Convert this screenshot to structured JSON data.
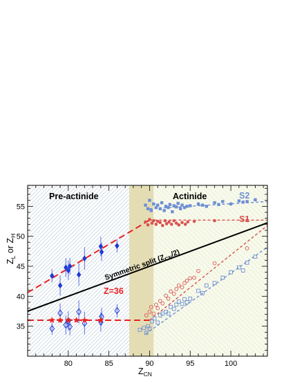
{
  "chart_data": {
    "type": "scatter",
    "xlabel": "Z",
    "xlabel_sub": "CN",
    "ylabel_parts": [
      "Z",
      "L",
      " or Z",
      "H"
    ],
    "xlim": [
      75,
      104.5
    ],
    "ylim": [
      30,
      58.5
    ],
    "x_ticks": [
      80,
      85,
      90,
      95,
      100
    ],
    "y_ticks": [
      35,
      40,
      45,
      50,
      55
    ],
    "regions": [
      {
        "label": "Pre-actinide",
        "x_range": [
          75,
          87.5
        ]
      },
      {
        "label": "",
        "x_range": [
          87.5,
          90.5
        ]
      },
      {
        "label": "Actinide",
        "x_range": [
          90.5,
          104.5
        ]
      }
    ],
    "colors": {
      "preactinide_points": "#1f3ad6",
      "preactinide_line": "#e8201f",
      "s1": "#d9534f",
      "s2": "#6f8fd4",
      "symmetric": "#000000",
      "band": "#e4ddb4",
      "hatch": "#8aa9bb",
      "actinide_bg": "#f8faeb"
    },
    "annotations": {
      "symmetric": {
        "text": "Symmetric split (Z",
        "sub": "CN",
        "tail": "/2)"
      },
      "z36": "Z=36",
      "s1": "S1",
      "s2": "S2"
    },
    "series": [
      {
        "name": "",
        "role": "heavy-preactinide",
        "marker": "filled-diamond",
        "color": "#1f3ad6",
        "x": [
          78,
          79,
          79.7,
          80,
          80.2,
          81.3,
          82,
          84,
          84.1,
          86
        ],
        "y": [
          43.4,
          41.8,
          44.8,
          44.3,
          45.0,
          43.6,
          46.3,
          48.3,
          47.4,
          48.4
        ],
        "err": [
          1.1,
          1.7,
          1.6,
          1.6,
          1.4,
          1.9,
          1.9,
          1.6,
          1.5,
          1.1
        ]
      },
      {
        "name": "",
        "role": "light-preactinide",
        "marker": "open-diamond",
        "color": "#1f3ad6",
        "x": [
          78,
          79,
          79.7,
          80,
          80.2,
          81.3,
          82,
          84,
          84.1,
          86
        ],
        "y": [
          34.6,
          37.2,
          35.2,
          35.9,
          34.9,
          37.4,
          35.5,
          35.7,
          36.6,
          37.6
        ],
        "err": [
          1.0,
          1.6,
          1.6,
          1.6,
          1.4,
          1.9,
          1.9,
          1.6,
          1.5,
          1.1
        ]
      },
      {
        "name": "",
        "role": "z36-points",
        "marker": "filled-star",
        "color": "#e8201f",
        "x": [
          78,
          79,
          80,
          81,
          82,
          84
        ],
        "y": [
          36,
          36,
          36,
          36,
          36,
          36
        ]
      },
      {
        "name": "S2",
        "role": "s2-heavy",
        "marker": "filled-square",
        "color": "#6f8fd4",
        "x": [
          89.5,
          89.8,
          90.0,
          90.2,
          90.5,
          90.8,
          91.0,
          91.3,
          91.5,
          91.8,
          92.0,
          92.3,
          92.5,
          92.8,
          93.0,
          93.3,
          93.5,
          93.8,
          94.0,
          94.3,
          94.6,
          95.0,
          96.0,
          96.5,
          97.0,
          98.0,
          98.5,
          99.0,
          100.0,
          101.0,
          101.5,
          102.0,
          103.0
        ],
        "y": [
          55.2,
          54.6,
          56.0,
          54.3,
          55.4,
          54.8,
          55.2,
          54.6,
          55.6,
          54.3,
          55.0,
          54.8,
          55.3,
          54.1,
          55.1,
          54.9,
          55.5,
          54.6,
          55.2,
          54.8,
          55.0,
          55.1,
          55.4,
          55.2,
          55.0,
          55.6,
          55.3,
          55.8,
          55.4,
          55.9,
          55.7,
          55.8,
          56.1
        ]
      },
      {
        "name": "S1",
        "role": "s1-heavy",
        "marker": "filled-circle",
        "color": "#d9534f",
        "x": [
          89.5,
          89.8,
          90.0,
          90.3,
          90.5,
          90.8,
          91.0,
          91.3,
          91.6,
          91.9,
          92.1,
          92.4,
          92.7,
          93.0,
          93.3,
          93.6,
          94.0,
          94.4,
          94.7,
          95.5,
          98.0,
          102.0
        ],
        "y": [
          52.4,
          51.9,
          52.8,
          52.2,
          52.6,
          52.0,
          52.5,
          52.3,
          51.8,
          52.6,
          52.1,
          52.4,
          52.0,
          52.6,
          52.2,
          51.9,
          52.3,
          52.0,
          52.4,
          52.5,
          52.6,
          52.7
        ]
      },
      {
        "name": "",
        "role": "s1-light",
        "marker": "open-circle",
        "color": "#d9534f",
        "x": [
          89.6,
          90.0,
          90.2,
          90.5,
          90.8,
          91.0,
          91.3,
          91.6,
          92.0,
          92.3,
          92.6,
          93.0,
          93.3,
          93.6,
          94.0,
          94.3,
          94.6,
          95.0,
          95.5,
          96.0,
          98.0,
          102.0
        ],
        "y": [
          36.8,
          37.4,
          38.2,
          37.1,
          38.6,
          38.0,
          39.2,
          38.8,
          40.1,
          39.6,
          40.8,
          40.4,
          41.2,
          41.8,
          41.5,
          42.2,
          42.6,
          43.0,
          43.1,
          44.2,
          45.5,
          48.0
        ]
      },
      {
        "name": "",
        "role": "s2-light",
        "marker": "open-square",
        "color": "#6f8fd4",
        "x": [
          88.8,
          89.3,
          89.6,
          89.8,
          90.0,
          90.3,
          90.6,
          91.0,
          91.3,
          91.6,
          92.0,
          92.3,
          92.6,
          93.0,
          93.3,
          93.6,
          94.0,
          94.3,
          94.6,
          95.0,
          96.0,
          96.5,
          97.0,
          98.0,
          99.0,
          100.0,
          101.0,
          101.5,
          102.0,
          103.0
        ],
        "y": [
          34.4,
          34.7,
          33.9,
          35.0,
          34.6,
          35.8,
          36.3,
          35.6,
          36.8,
          37.1,
          37.4,
          37.1,
          38.2,
          37.9,
          38.6,
          39.1,
          38.7,
          39.5,
          39.0,
          39.6,
          40.9,
          40.5,
          41.8,
          42.2,
          43.1,
          44.0,
          44.8,
          44.3,
          45.6,
          46.6
        ]
      }
    ],
    "lines": [
      {
        "role": "symmetric",
        "style": "solid",
        "color": "#000000",
        "x": [
          75,
          104.5
        ],
        "y": [
          37.5,
          52.25
        ]
      },
      {
        "role": "preactinide-heavy-fit",
        "style": "longdash",
        "color": "#e8201f",
        "x": [
          75,
          90
        ],
        "y": [
          40.6,
          52.7
        ]
      },
      {
        "role": "preactinide-z36-fit",
        "style": "longdash",
        "color": "#e8201f",
        "x": [
          75,
          90
        ],
        "y": [
          36,
          36
        ]
      },
      {
        "role": "s1-heavy-fit",
        "style": "dashed",
        "color": "#d9534f",
        "x": [
          90,
          104.5
        ],
        "y": [
          52.7,
          52.7
        ]
      },
      {
        "role": "s1-light-fit",
        "style": "dashed",
        "color": "#d9534f",
        "x": [
          90,
          104.5
        ],
        "y": [
          36.0,
          51.8
        ]
      },
      {
        "role": "s2-heavy-fit",
        "style": "dashed",
        "color": "#6f8fd4",
        "x": [
          90,
          104.5
        ],
        "y": [
          54.6,
          55.8
        ]
      },
      {
        "role": "s2-light-fit",
        "style": "dashed",
        "color": "#6f8fd4",
        "x": [
          89.5,
          104.5
        ],
        "y": [
          33.7,
          48.2
        ]
      }
    ]
  }
}
